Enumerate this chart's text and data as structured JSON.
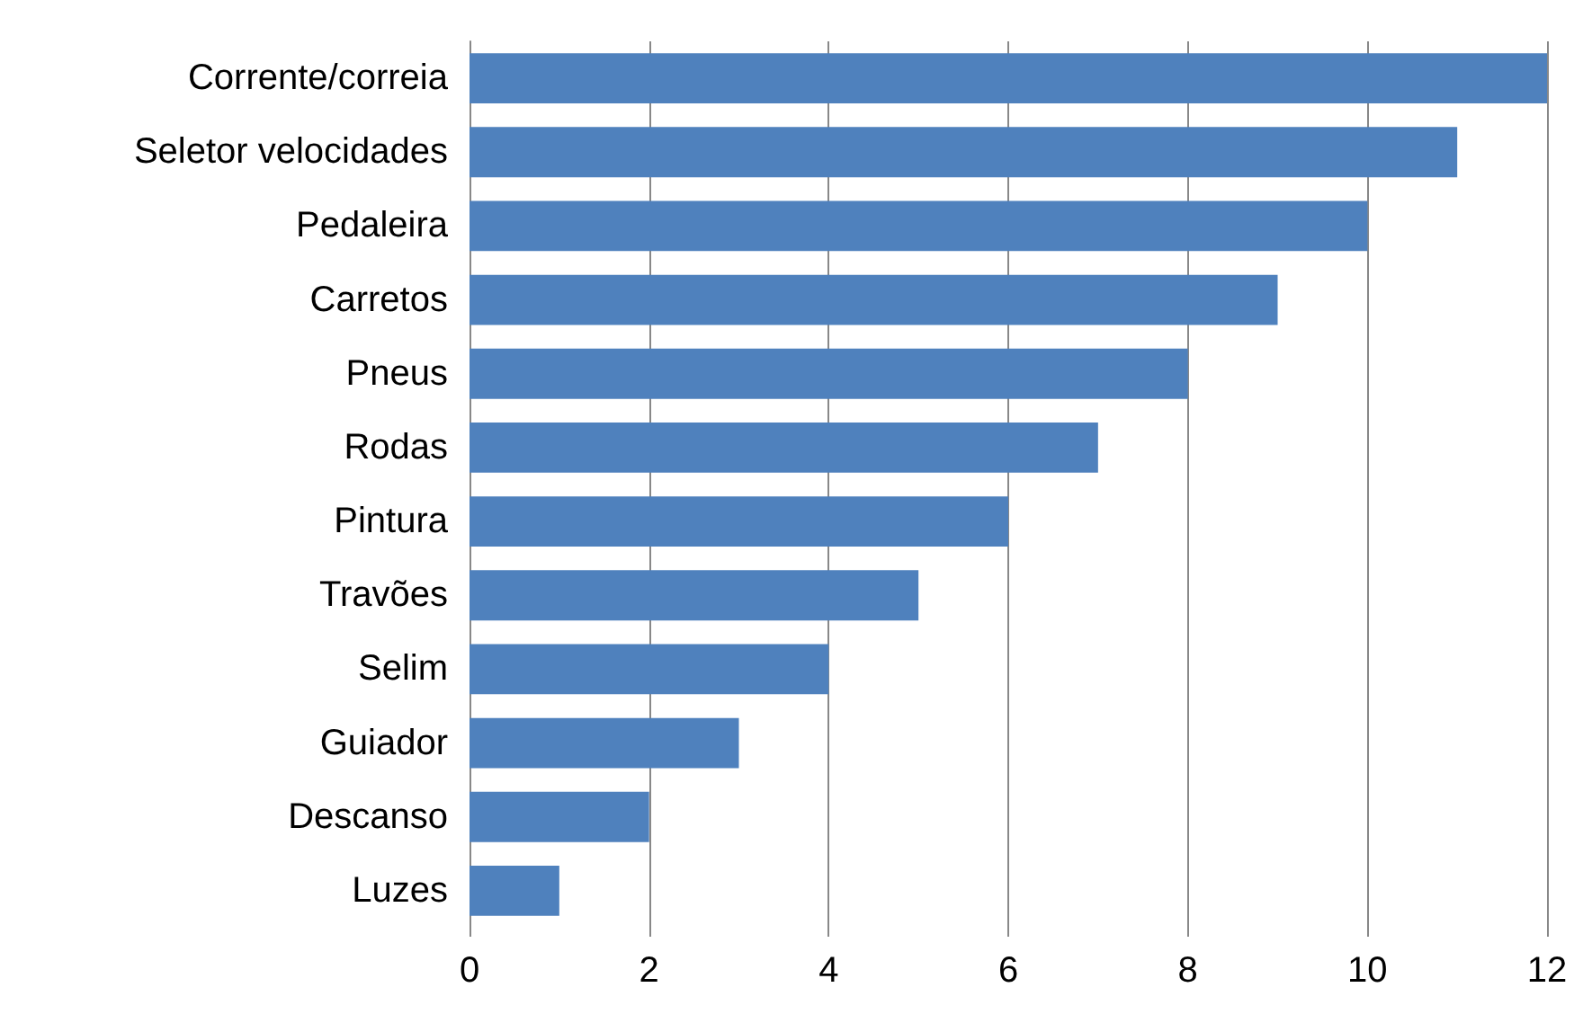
{
  "chart_data": {
    "type": "bar",
    "orientation": "horizontal",
    "categories": [
      "Corrente/correia",
      "Seletor velocidades",
      "Pedaleira",
      "Carretos",
      "Pneus",
      "Rodas",
      "Pintura",
      "Travões",
      "Selim",
      "Guiador",
      "Descanso",
      "Luzes"
    ],
    "values": [
      12,
      11,
      10,
      9,
      8,
      7,
      6,
      5,
      4,
      3,
      2,
      1
    ],
    "color": "#4f81bd",
    "xlim": [
      0,
      12
    ],
    "xticks": [
      0,
      2,
      4,
      6,
      8,
      10,
      12
    ],
    "grid": "x"
  }
}
